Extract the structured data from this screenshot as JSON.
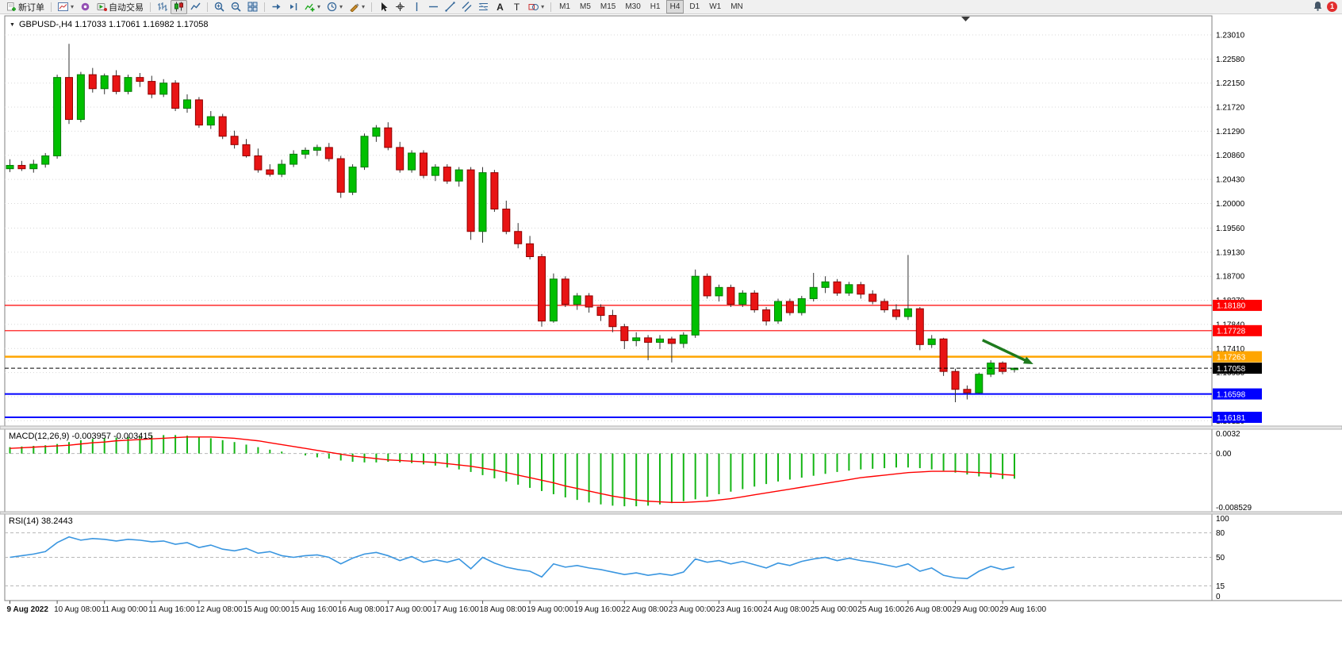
{
  "toolbar": {
    "badge": "1",
    "groups": [
      {
        "items": [
          {
            "name": "new-order-button",
            "icon": "new-order",
            "label": "新订单"
          }
        ]
      },
      {
        "items": [
          {
            "name": "new-chart-button",
            "icon": "new-chart",
            "dropdown": true
          },
          {
            "name": "alerts-button",
            "icon": "alerts"
          },
          {
            "name": "autotrade-button",
            "icon": "autotrade",
            "label": "自动交易"
          }
        ]
      },
      {
        "items": [
          {
            "name": "bar-chart-button",
            "icon": "bar-chart"
          },
          {
            "name": "candle-chart-button",
            "icon": "candle-chart",
            "active": true
          },
          {
            "name": "line-chart-button",
            "icon": "line-chart"
          }
        ]
      },
      {
        "items": [
          {
            "name": "zoom-in-button",
            "icon": "zoom-in"
          },
          {
            "name": "zoom-out-button",
            "icon": "zoom-out"
          },
          {
            "name": "tile-windows-button",
            "icon": "tile-windows"
          }
        ]
      },
      {
        "items": [
          {
            "name": "auto-scroll-button",
            "icon": "auto-scroll"
          },
          {
            "name": "chart-shift-button",
            "icon": "chart-shift"
          },
          {
            "name": "indicators-button",
            "icon": "indicators",
            "dropdown": true
          },
          {
            "name": "periods-button",
            "icon": "clock",
            "dropdown": true
          },
          {
            "name": "templates-button",
            "icon": "templates",
            "dropdown": true
          }
        ]
      },
      {
        "items": [
          {
            "name": "cursor-button",
            "icon": "cursor"
          },
          {
            "name": "crosshair-button",
            "icon": "crosshair"
          },
          {
            "name": "vertical-line-button",
            "icon": "vline"
          },
          {
            "name": "horizontal-line-button",
            "icon": "hline"
          },
          {
            "name": "trendline-button",
            "icon": "trendline"
          },
          {
            "name": "channel-button",
            "icon": "channel"
          },
          {
            "name": "fibonacci-button",
            "icon": "fibo"
          },
          {
            "name": "text-button",
            "icon": "text"
          },
          {
            "name": "label-button",
            "icon": "label"
          },
          {
            "name": "shapes-button",
            "icon": "shapes",
            "dropdown": true
          }
        ]
      }
    ],
    "timeframes": [
      "M1",
      "M5",
      "M15",
      "M30",
      "H1",
      "H4",
      "D1",
      "W1",
      "MN"
    ],
    "active_timeframe": "H4"
  },
  "chart": {
    "symbol_line": "GBPUSD-,H4  1.17033 1.17061 1.16982 1.17058"
  },
  "chart_data": {
    "type": "candlestick",
    "title": "GBPUSD-,H4",
    "symbol": "GBPUSD-",
    "timeframe": "H4",
    "current": {
      "open": 1.17033,
      "high": 1.17061,
      "low": 1.16982,
      "close": 1.17058
    },
    "colors": {
      "bull": "#00c000",
      "bear": "#e81414",
      "grid": "#d8d8d8",
      "background": "#ffffff"
    },
    "price_axis": [
      "1.23010",
      "1.22580",
      "1.22150",
      "1.21720",
      "1.21290",
      "1.20860",
      "1.20430",
      "1.20000",
      "1.19560",
      "1.19130",
      "1.18700",
      "1.18270",
      "1.17840",
      "1.17410",
      "1.16980",
      "1.16550",
      "1.16120"
    ],
    "hlines": [
      {
        "price": 1.1818,
        "label": "1.18180",
        "color": "#ff0000",
        "width": 1.2
      },
      {
        "price": 1.17728,
        "label": "1.17728",
        "color": "#ff0000",
        "width": 1.2
      },
      {
        "price": 1.17263,
        "label": "1.17263",
        "color": "#ffa500",
        "width": 2.4
      },
      {
        "price": 1.16598,
        "label": "1.16598",
        "color": "#0000ff",
        "width": 2
      },
      {
        "price": 1.16181,
        "label": "1.16181",
        "color": "#0000ff",
        "width": 2
      }
    ],
    "bid_line": {
      "price": 1.17058,
      "label": "1.17058",
      "color": "#000000"
    },
    "arrow": {
      "color": "#1e7a1e",
      "start": {
        "bar": 82.3,
        "price": 1.1756
      },
      "end": {
        "bar": 86.6,
        "price": 1.1713
      }
    },
    "candles": [
      [
        1.2062,
        1.2079,
        1.2056,
        1.2068
      ],
      [
        1.2068,
        1.2076,
        1.2058,
        1.2062
      ],
      [
        1.2062,
        1.2078,
        1.2055,
        1.207
      ],
      [
        1.207,
        1.209,
        1.2064,
        1.2085
      ],
      [
        1.2085,
        1.223,
        1.208,
        1.2225
      ],
      [
        1.2225,
        1.2285,
        1.2142,
        1.215
      ],
      [
        1.215,
        1.2235,
        1.2145,
        1.223
      ],
      [
        1.223,
        1.2242,
        1.2198,
        1.2205
      ],
      [
        1.2205,
        1.2232,
        1.2195,
        1.2228
      ],
      [
        1.2228,
        1.2238,
        1.2195,
        1.22
      ],
      [
        1.22,
        1.223,
        1.2195,
        1.2225
      ],
      [
        1.2225,
        1.2233,
        1.2208,
        1.2218
      ],
      [
        1.2218,
        1.2228,
        1.2188,
        1.2195
      ],
      [
        1.2195,
        1.2222,
        1.219,
        1.2215
      ],
      [
        1.2215,
        1.222,
        1.2165,
        1.217
      ],
      [
        1.217,
        1.2195,
        1.2162,
        1.2185
      ],
      [
        1.2185,
        1.219,
        1.2135,
        1.214
      ],
      [
        1.214,
        1.2165,
        1.2133,
        1.2155
      ],
      [
        1.2155,
        1.216,
        1.2115,
        1.212
      ],
      [
        1.212,
        1.213,
        1.2098,
        1.2105
      ],
      [
        1.2105,
        1.2115,
        1.2082,
        1.2085
      ],
      [
        1.2085,
        1.2098,
        1.2055,
        1.206
      ],
      [
        1.206,
        1.207,
        1.2048,
        1.2052
      ],
      [
        1.2052,
        1.2078,
        1.2047,
        1.207
      ],
      [
        1.207,
        1.2095,
        1.2065,
        1.2088
      ],
      [
        1.2088,
        1.21,
        1.208,
        1.2095
      ],
      [
        1.2095,
        1.2105,
        1.2085,
        1.21
      ],
      [
        1.21,
        1.2108,
        1.2075,
        1.208
      ],
      [
        1.208,
        1.2085,
        1.201,
        1.202
      ],
      [
        1.202,
        1.207,
        1.2015,
        1.2065
      ],
      [
        1.2065,
        1.2125,
        1.206,
        1.212
      ],
      [
        1.212,
        1.214,
        1.211,
        1.2135
      ],
      [
        1.2135,
        1.2145,
        1.2095,
        1.21
      ],
      [
        1.21,
        1.211,
        1.2055,
        1.206
      ],
      [
        1.206,
        1.2095,
        1.2055,
        1.209
      ],
      [
        1.209,
        1.2095,
        1.2045,
        1.205
      ],
      [
        1.205,
        1.207,
        1.204,
        1.2065
      ],
      [
        1.2065,
        1.207,
        1.2035,
        1.204
      ],
      [
        1.204,
        1.2065,
        1.203,
        1.206
      ],
      [
        1.206,
        1.2065,
        1.1935,
        1.195
      ],
      [
        1.195,
        1.2065,
        1.193,
        1.2055
      ],
      [
        1.2055,
        1.206,
        1.1985,
        1.199
      ],
      [
        1.199,
        1.2005,
        1.1945,
        1.195
      ],
      [
        1.195,
        1.1965,
        1.192,
        1.1928
      ],
      [
        1.1928,
        1.1942,
        1.19,
        1.1905
      ],
      [
        1.1905,
        1.191,
        1.178,
        1.179
      ],
      [
        1.179,
        1.1875,
        1.1787,
        1.1865
      ],
      [
        1.1865,
        1.187,
        1.1815,
        1.182
      ],
      [
        1.182,
        1.184,
        1.181,
        1.1835
      ],
      [
        1.1835,
        1.184,
        1.1805,
        1.1815
      ],
      [
        1.1815,
        1.182,
        1.179,
        1.18
      ],
      [
        1.18,
        1.181,
        1.177,
        1.178
      ],
      [
        1.178,
        1.1785,
        1.174,
        1.1755
      ],
      [
        1.1755,
        1.177,
        1.1745,
        1.176
      ],
      [
        1.176,
        1.1765,
        1.172,
        1.1752
      ],
      [
        1.1752,
        1.1765,
        1.174,
        1.1758
      ],
      [
        1.1758,
        1.1762,
        1.1716,
        1.175
      ],
      [
        1.175,
        1.177,
        1.1742,
        1.1765
      ],
      [
        1.1765,
        1.1882,
        1.176,
        1.187
      ],
      [
        1.187,
        1.1875,
        1.183,
        1.1835
      ],
      [
        1.1835,
        1.1855,
        1.1825,
        1.185
      ],
      [
        1.185,
        1.1855,
        1.1815,
        1.182
      ],
      [
        1.182,
        1.1845,
        1.1815,
        1.184
      ],
      [
        1.184,
        1.1845,
        1.1805,
        1.181
      ],
      [
        1.181,
        1.1815,
        1.1782,
        1.179
      ],
      [
        1.179,
        1.183,
        1.1785,
        1.1825
      ],
      [
        1.1825,
        1.183,
        1.18,
        1.1805
      ],
      [
        1.1805,
        1.1835,
        1.18,
        1.183
      ],
      [
        1.183,
        1.1876,
        1.1825,
        1.185
      ],
      [
        1.185,
        1.187,
        1.184,
        1.186
      ],
      [
        1.186,
        1.1865,
        1.1835,
        1.184
      ],
      [
        1.184,
        1.186,
        1.1835,
        1.1855
      ],
      [
        1.1855,
        1.186,
        1.183,
        1.1838
      ],
      [
        1.1838,
        1.1845,
        1.182,
        1.1825
      ],
      [
        1.1825,
        1.183,
        1.1805,
        1.181
      ],
      [
        1.181,
        1.182,
        1.1792,
        1.1798
      ],
      [
        1.1798,
        1.1908,
        1.1792,
        1.1812
      ],
      [
        1.1812,
        1.1815,
        1.1738,
        1.1748
      ],
      [
        1.1748,
        1.1765,
        1.1742,
        1.1758
      ],
      [
        1.1758,
        1.176,
        1.1692,
        1.17
      ],
      [
        1.17,
        1.1705,
        1.1645,
        1.1668
      ],
      [
        1.1668,
        1.1675,
        1.165,
        1.1662
      ],
      [
        1.1662,
        1.1698,
        1.166,
        1.1695
      ],
      [
        1.1695,
        1.172,
        1.169,
        1.1715
      ],
      [
        1.1715,
        1.1718,
        1.1695,
        1.17
      ],
      [
        1.17033,
        1.17061,
        1.16982,
        1.17058
      ]
    ],
    "time_axis": [
      {
        "bar": 0,
        "text": "9 Aug 2022",
        "bold": true
      },
      {
        "bar": 4,
        "text": "10 Aug 08:00"
      },
      {
        "bar": 8,
        "text": "11 Aug 00:00"
      },
      {
        "bar": 12,
        "text": "11 Aug 16:00"
      },
      {
        "bar": 16,
        "text": "12 Aug 08:00"
      },
      {
        "bar": 20,
        "text": "15 Aug 00:00"
      },
      {
        "bar": 24,
        "text": "15 Aug 16:00"
      },
      {
        "bar": 28,
        "text": "16 Aug 08:00"
      },
      {
        "bar": 32,
        "text": "17 Aug 00:00"
      },
      {
        "bar": 36,
        "text": "17 Aug 16:00"
      },
      {
        "bar": 40,
        "text": "18 Aug 08:00"
      },
      {
        "bar": 44,
        "text": "19 Aug 00:00"
      },
      {
        "bar": 48,
        "text": "19 Aug 16:00"
      },
      {
        "bar": 52,
        "text": "22 Aug 08:00"
      },
      {
        "bar": 56,
        "text": "23 Aug 00:00"
      },
      {
        "bar": 60,
        "text": "23 Aug 16:00"
      },
      {
        "bar": 64,
        "text": "24 Aug 08:00"
      },
      {
        "bar": 68,
        "text": "25 Aug 00:00"
      },
      {
        "bar": 72,
        "text": "25 Aug 16:00"
      },
      {
        "bar": 76,
        "text": "26 Aug 08:00"
      },
      {
        "bar": 80,
        "text": "29 Aug 00:00"
      },
      {
        "bar": 84,
        "text": "29 Aug 16:00"
      }
    ],
    "macd": {
      "label": "MACD(12,26,9) -0.003957 -0.003415",
      "params": "12,26,9",
      "value_main": -0.003957,
      "value_signal": -0.003415,
      "histogram_color": "#14b514",
      "signal_color": "#ff0000",
      "scale": {
        "max": 0.0032,
        "min": -0.008529,
        "labels": [
          {
            "text": "0.0032",
            "v": 0.0032
          },
          {
            "text": "0.00",
            "v": 0
          },
          {
            "text": "-0.008529",
            "v": -0.008529
          }
        ]
      },
      "main": [
        0.001,
        0.0011,
        0.0012,
        0.0013,
        0.0015,
        0.0018,
        0.0021,
        0.0023,
        0.0024,
        0.0025,
        0.0026,
        0.0027,
        0.0028,
        0.0029,
        0.0029,
        0.0028,
        0.0026,
        0.0024,
        0.0021,
        0.0018,
        0.0014,
        0.001,
        0.0006,
        0.0003,
        0.0,
        -0.0003,
        -0.0006,
        -0.0008,
        -0.0011,
        -0.0013,
        -0.0014,
        -0.0014,
        -0.0013,
        -0.0014,
        -0.0015,
        -0.0017,
        -0.0019,
        -0.0022,
        -0.0025,
        -0.0029,
        -0.0034,
        -0.0039,
        -0.0044,
        -0.0049,
        -0.0054,
        -0.0059,
        -0.0064,
        -0.0069,
        -0.0073,
        -0.0077,
        -0.008,
        -0.0082,
        -0.0083,
        -0.0083,
        -0.0082,
        -0.008,
        -0.0078,
        -0.0075,
        -0.0072,
        -0.0068,
        -0.0064,
        -0.006,
        -0.0056,
        -0.0052,
        -0.0048,
        -0.0044,
        -0.0041,
        -0.0038,
        -0.0035,
        -0.0032,
        -0.0029,
        -0.0027,
        -0.0025,
        -0.0024,
        -0.0023,
        -0.0022,
        -0.0022,
        -0.0023,
        -0.0025,
        -0.0027,
        -0.003,
        -0.0033,
        -0.0036,
        -0.0038,
        -0.004,
        -0.003957
      ],
      "signal": [
        0.0008,
        0.0009,
        0.001,
        0.0011,
        0.0012,
        0.0013,
        0.0015,
        0.0017,
        0.0018,
        0.002,
        0.0021,
        0.0022,
        0.0023,
        0.0024,
        0.0025,
        0.0026,
        0.0026,
        0.0026,
        0.0025,
        0.0024,
        0.0022,
        0.002,
        0.0017,
        0.0014,
        0.0011,
        0.0008,
        0.0005,
        0.0002,
        -0.0001,
        -0.0004,
        -0.0006,
        -0.0008,
        -0.001,
        -0.0011,
        -0.0012,
        -0.0013,
        -0.0014,
        -0.0016,
        -0.0018,
        -0.002,
        -0.0023,
        -0.0026,
        -0.003,
        -0.0034,
        -0.0038,
        -0.0042,
        -0.0046,
        -0.0051,
        -0.0055,
        -0.0059,
        -0.0063,
        -0.0067,
        -0.007,
        -0.0073,
        -0.0075,
        -0.0076,
        -0.0077,
        -0.0077,
        -0.0076,
        -0.0075,
        -0.0073,
        -0.0071,
        -0.0068,
        -0.0065,
        -0.0062,
        -0.0059,
        -0.0056,
        -0.0053,
        -0.005,
        -0.0047,
        -0.0044,
        -0.0041,
        -0.0038,
        -0.0036,
        -0.0034,
        -0.0032,
        -0.003,
        -0.0029,
        -0.0028,
        -0.0028,
        -0.0028,
        -0.0029,
        -0.003,
        -0.0031,
        -0.0033,
        -0.003415
      ]
    },
    "rsi": {
      "label": "RSI(14) 38.2443",
      "period": 14,
      "value": 38.2443,
      "line_color": "#3a96e0",
      "levels": [
        80,
        50,
        15
      ],
      "scale_labels": [
        {
          "text": "100",
          "v": 100
        },
        {
          "text": "80",
          "v": 80
        },
        {
          "text": "50",
          "v": 50
        },
        {
          "text": "15",
          "v": 15
        },
        {
          "text": "0",
          "v": 0
        }
      ],
      "values": [
        50,
        52,
        54,
        57,
        68,
        75,
        71,
        73,
        72,
        70,
        72,
        71,
        69,
        70,
        66,
        68,
        62,
        65,
        60,
        58,
        61,
        55,
        57,
        52,
        50,
        52,
        53,
        50,
        42,
        49,
        54,
        56,
        52,
        46,
        51,
        44,
        47,
        44,
        48,
        36,
        50,
        43,
        38,
        35,
        33,
        26,
        42,
        38,
        40,
        37,
        35,
        32,
        29,
        31,
        28,
        30,
        28,
        32,
        48,
        44,
        46,
        42,
        45,
        41,
        37,
        43,
        40,
        45,
        48,
        50,
        46,
        49,
        46,
        44,
        41,
        38,
        42,
        33,
        37,
        28,
        25,
        24,
        33,
        39,
        35,
        38.2443
      ]
    }
  }
}
